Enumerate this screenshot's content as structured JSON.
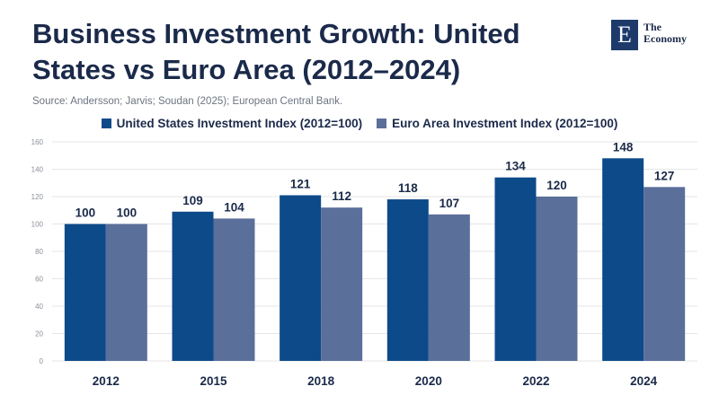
{
  "header": {
    "title": "Business Investment Growth: United States vs Euro Area (2012–2024)",
    "source": "Source: Andersson; Jarvis; Soudan (2025); European Central Bank."
  },
  "logo": {
    "mark": "E",
    "line1": "The",
    "line2": "Economy",
    "color": "#1d3a6b"
  },
  "colors": {
    "us": "#0d4a8a",
    "euro": "#5b6f9b",
    "grid": "#e6e6e6",
    "text": "#1b2a4a"
  },
  "chart_data": {
    "type": "bar",
    "title": "Business Investment Growth: United States vs Euro Area (2012–2024)",
    "categories": [
      "2012",
      "2015",
      "2018",
      "2020",
      "2022",
      "2024"
    ],
    "series": [
      {
        "name": "United States Investment Index (2012=100)",
        "values": [
          100,
          109,
          121,
          118,
          134,
          148
        ]
      },
      {
        "name": "Euro Area Investment Index (2012=100)",
        "values": [
          100,
          104,
          112,
          107,
          120,
          127
        ]
      }
    ],
    "yticks": [
      "0",
      "20",
      "40",
      "60",
      "80",
      "100",
      "120",
      "140",
      "160"
    ],
    "ylim": [
      0,
      160
    ],
    "xlabel": "",
    "ylabel": "",
    "grid": true,
    "legend": "top-center"
  }
}
